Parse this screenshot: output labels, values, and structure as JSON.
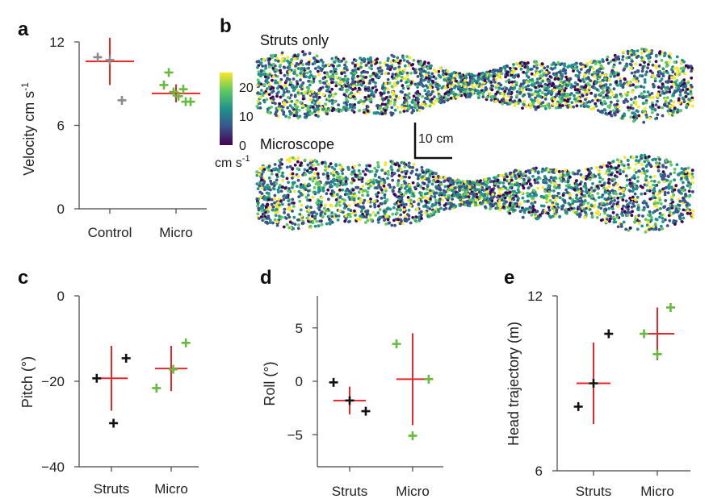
{
  "colors": {
    "red": "#e8262a",
    "black": "#111111",
    "green": "#66bb3d",
    "grey": "#8a8a8a",
    "axis": "#444444",
    "viridis": [
      "#440154",
      "#3b528b",
      "#21918c",
      "#5ec962",
      "#fde725"
    ]
  },
  "chart_data": [
    {
      "id": "a",
      "letter": "a",
      "type": "scatter",
      "ylabel": "Velocity cm s",
      "ylabel_sup": "-1",
      "categories": [
        "Control",
        "Micro"
      ],
      "ylim": [
        0,
        12
      ],
      "yticks": [
        0,
        6,
        12
      ],
      "ytick_labels": [
        "0",
        "6",
        "12"
      ],
      "mean_sd": [
        {
          "category": "Control",
          "mean": 10.6,
          "sd": 1.7,
          "color": "red"
        },
        {
          "category": "Micro",
          "mean": 8.3,
          "sd": 0.65,
          "color": "red"
        }
      ],
      "points": [
        {
          "category": "Control",
          "offset": -0.25,
          "value": 10.9,
          "color": "grey"
        },
        {
          "category": "Control",
          "offset": 0.0,
          "value": 10.7,
          "color": "grey"
        },
        {
          "category": "Control",
          "offset": 0.25,
          "value": 7.8,
          "color": "grey"
        },
        {
          "category": "Micro",
          "offset": -0.25,
          "value": 8.9,
          "color": "green"
        },
        {
          "category": "Micro",
          "offset": -0.15,
          "value": 9.8,
          "color": "green"
        },
        {
          "category": "Micro",
          "offset": -0.05,
          "value": 8.4,
          "color": "green"
        },
        {
          "category": "Micro",
          "offset": 0.05,
          "value": 8.1,
          "color": "green"
        },
        {
          "category": "Micro",
          "offset": 0.15,
          "value": 8.6,
          "color": "green"
        },
        {
          "category": "Micro",
          "offset": 0.2,
          "value": 7.7,
          "color": "green"
        },
        {
          "category": "Micro",
          "offset": 0.3,
          "value": 7.7,
          "color": "green"
        }
      ]
    },
    {
      "id": "c",
      "letter": "c",
      "type": "scatter",
      "ylabel": "Pitch (°)",
      "categories": [
        "Struts",
        "Micro"
      ],
      "ylim": [
        -40,
        0
      ],
      "yticks": [
        -40,
        -20,
        0
      ],
      "ytick_labels": [
        "−40",
        "−20",
        "0"
      ],
      "mean_sd": [
        {
          "category": "Struts",
          "mean": -19.3,
          "sd": 7.6,
          "color": "red"
        },
        {
          "category": "Micro",
          "mean": -17.0,
          "sd": 5.3,
          "color": "red"
        }
      ],
      "points": [
        {
          "category": "Struts",
          "offset": -0.35,
          "value": -19.3,
          "color": "black"
        },
        {
          "category": "Struts",
          "offset": 0.05,
          "value": -29.8,
          "color": "black"
        },
        {
          "category": "Struts",
          "offset": 0.35,
          "value": -14.6,
          "color": "black"
        },
        {
          "category": "Micro",
          "offset": -0.35,
          "value": -21.6,
          "color": "green"
        },
        {
          "category": "Micro",
          "offset": 0.05,
          "value": -17.2,
          "color": "green"
        },
        {
          "category": "Micro",
          "offset": 0.35,
          "value": -11.0,
          "color": "green"
        }
      ]
    },
    {
      "id": "d",
      "letter": "d",
      "type": "scatter",
      "ylabel": "Roll (°)",
      "categories": [
        "Struts",
        "Micro"
      ],
      "ylim": [
        -8,
        8
      ],
      "yticks": [
        -5,
        0,
        5
      ],
      "ytick_labels": [
        "−5",
        "0",
        "5"
      ],
      "mean_sd": [
        {
          "category": "Struts",
          "mean": -1.8,
          "sd": 1.3,
          "color": "red"
        },
        {
          "category": "Micro",
          "mean": 0.2,
          "sd": 4.3,
          "color": "red"
        }
      ],
      "points": [
        {
          "category": "Struts",
          "offset": -0.35,
          "value": -0.1,
          "color": "black"
        },
        {
          "category": "Struts",
          "offset": 0.0,
          "value": -1.8,
          "color": "black"
        },
        {
          "category": "Struts",
          "offset": 0.35,
          "value": -2.8,
          "color": "black"
        },
        {
          "category": "Micro",
          "offset": -0.35,
          "value": 3.5,
          "color": "green"
        },
        {
          "category": "Micro",
          "offset": 0.0,
          "value": -5.1,
          "color": "green"
        },
        {
          "category": "Micro",
          "offset": 0.35,
          "value": 0.2,
          "color": "green"
        }
      ]
    },
    {
      "id": "e",
      "letter": "e",
      "type": "scatter",
      "ylabel": "Head trajectory (m)",
      "categories": [
        "Struts",
        "Micro"
      ],
      "ylim": [
        6,
        12
      ],
      "yticks": [
        6,
        12
      ],
      "ytick_labels": [
        "6",
        "12"
      ],
      "mean_sd": [
        {
          "category": "Struts",
          "mean": 9.0,
          "sd": 1.4,
          "color": "red"
        },
        {
          "category": "Micro",
          "mean": 10.7,
          "sd": 0.9,
          "color": "red"
        }
      ],
      "points": [
        {
          "category": "Struts",
          "offset": -0.4,
          "value": 8.2,
          "color": "black"
        },
        {
          "category": "Struts",
          "offset": 0.0,
          "value": 9.0,
          "color": "black"
        },
        {
          "category": "Struts",
          "offset": 0.4,
          "value": 10.7,
          "color": "black"
        },
        {
          "category": "Micro",
          "offset": -0.35,
          "value": 10.7,
          "color": "green"
        },
        {
          "category": "Micro",
          "offset": 0.0,
          "value": 10.0,
          "color": "green"
        },
        {
          "category": "Micro",
          "offset": 0.35,
          "value": 11.6,
          "color": "green"
        }
      ]
    }
  ],
  "panel_b": {
    "letter": "b",
    "tracks": [
      {
        "title": "Struts only"
      },
      {
        "title": "Microscope"
      }
    ],
    "colorbar": {
      "min": 0,
      "max": 25,
      "ticks": [
        0,
        10,
        20
      ],
      "tick_labels": [
        "0",
        "10",
        "20"
      ],
      "unit": "cm s",
      "unit_sup": "-1"
    },
    "scale_bar_label": "10 cm"
  }
}
